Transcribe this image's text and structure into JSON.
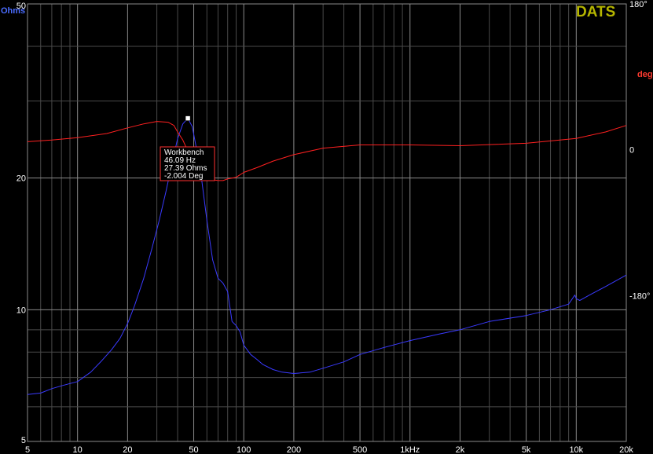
{
  "chart_data": {
    "type": "line",
    "logo": "DATS",
    "x_scale": "log",
    "xlim": [
      5,
      20000
    ],
    "x_ticks": [
      5,
      10,
      20,
      50,
      100,
      200,
      500,
      1000,
      2000,
      5000,
      10000,
      20000
    ],
    "x_tick_labels": [
      "5",
      "10",
      "20",
      "50",
      "100",
      "200",
      "500",
      "1kHz",
      "2k",
      "5k",
      "10k",
      "20k"
    ],
    "left_axis": {
      "unit_label": "Ohms",
      "scale": "log",
      "lim": [
        5,
        50
      ],
      "ticks": [
        5,
        10,
        20,
        50
      ],
      "tick_labels": [
        "5",
        "10",
        "20",
        "50"
      ]
    },
    "right_axis": {
      "unit_label": "deg",
      "lim": [
        -360,
        180
      ],
      "ticks": [
        180,
        0,
        -180
      ],
      "tick_labels": [
        "180°",
        "0",
        "-180°"
      ]
    },
    "grid": true,
    "series": [
      {
        "axis": "left",
        "color": "#3a3aff",
        "x": [
          5,
          6,
          7,
          8,
          9,
          10,
          12,
          14,
          16,
          18,
          20,
          22,
          25,
          28,
          31,
          34,
          37,
          40,
          43,
          46.09,
          49,
          52,
          56,
          60,
          65,
          70,
          75,
          80,
          85,
          90,
          95,
          100,
          110,
          120,
          130,
          150,
          170,
          200,
          250,
          300,
          400,
          500,
          700,
          1000,
          1500,
          2000,
          3000,
          5000,
          7000,
          9000,
          9800,
          10000,
          10500,
          12000,
          15000,
          20000
        ],
        "values": [
          6.4,
          6.45,
          6.6,
          6.7,
          6.78,
          6.85,
          7.2,
          7.65,
          8.1,
          8.6,
          9.3,
          10.2,
          11.8,
          13.8,
          16.0,
          18.6,
          21.6,
          24.6,
          26.6,
          27.39,
          26.2,
          23.3,
          19.6,
          16.0,
          13.0,
          11.8,
          11.5,
          11.0,
          9.4,
          9.2,
          8.9,
          8.3,
          7.9,
          7.7,
          7.5,
          7.3,
          7.2,
          7.15,
          7.2,
          7.35,
          7.6,
          7.9,
          8.2,
          8.5,
          8.8,
          9.0,
          9.4,
          9.7,
          10.0,
          10.3,
          10.8,
          10.6,
          10.5,
          10.8,
          11.3,
          12.0
        ]
      },
      {
        "axis": "right",
        "color": "#ff2020",
        "x": [
          5,
          7,
          10,
          15,
          20,
          25,
          30,
          35,
          38,
          40,
          43,
          46.09,
          50,
          55,
          60,
          65,
          70,
          75,
          80,
          90,
          100,
          120,
          150,
          200,
          300,
          500,
          1000,
          2000,
          5000,
          10000,
          15000,
          20000
        ],
        "values": [
          10,
          12,
          15,
          20,
          27,
          32,
          35,
          34,
          30,
          22,
          12,
          -2.004,
          -14,
          -30,
          -36,
          -37,
          -38,
          -38,
          -36,
          -34,
          -28,
          -22,
          -14,
          -6,
          2,
          6,
          6,
          5,
          8,
          14,
          22,
          30
        ]
      }
    ],
    "marker": {
      "name": "Workbench",
      "freq_text": "46.09 Hz",
      "ohms_text": "27.39 Ohms",
      "deg_text": "-2.004 Deg",
      "x": 46.09,
      "ohms": 27.39,
      "deg": -2.004
    }
  }
}
